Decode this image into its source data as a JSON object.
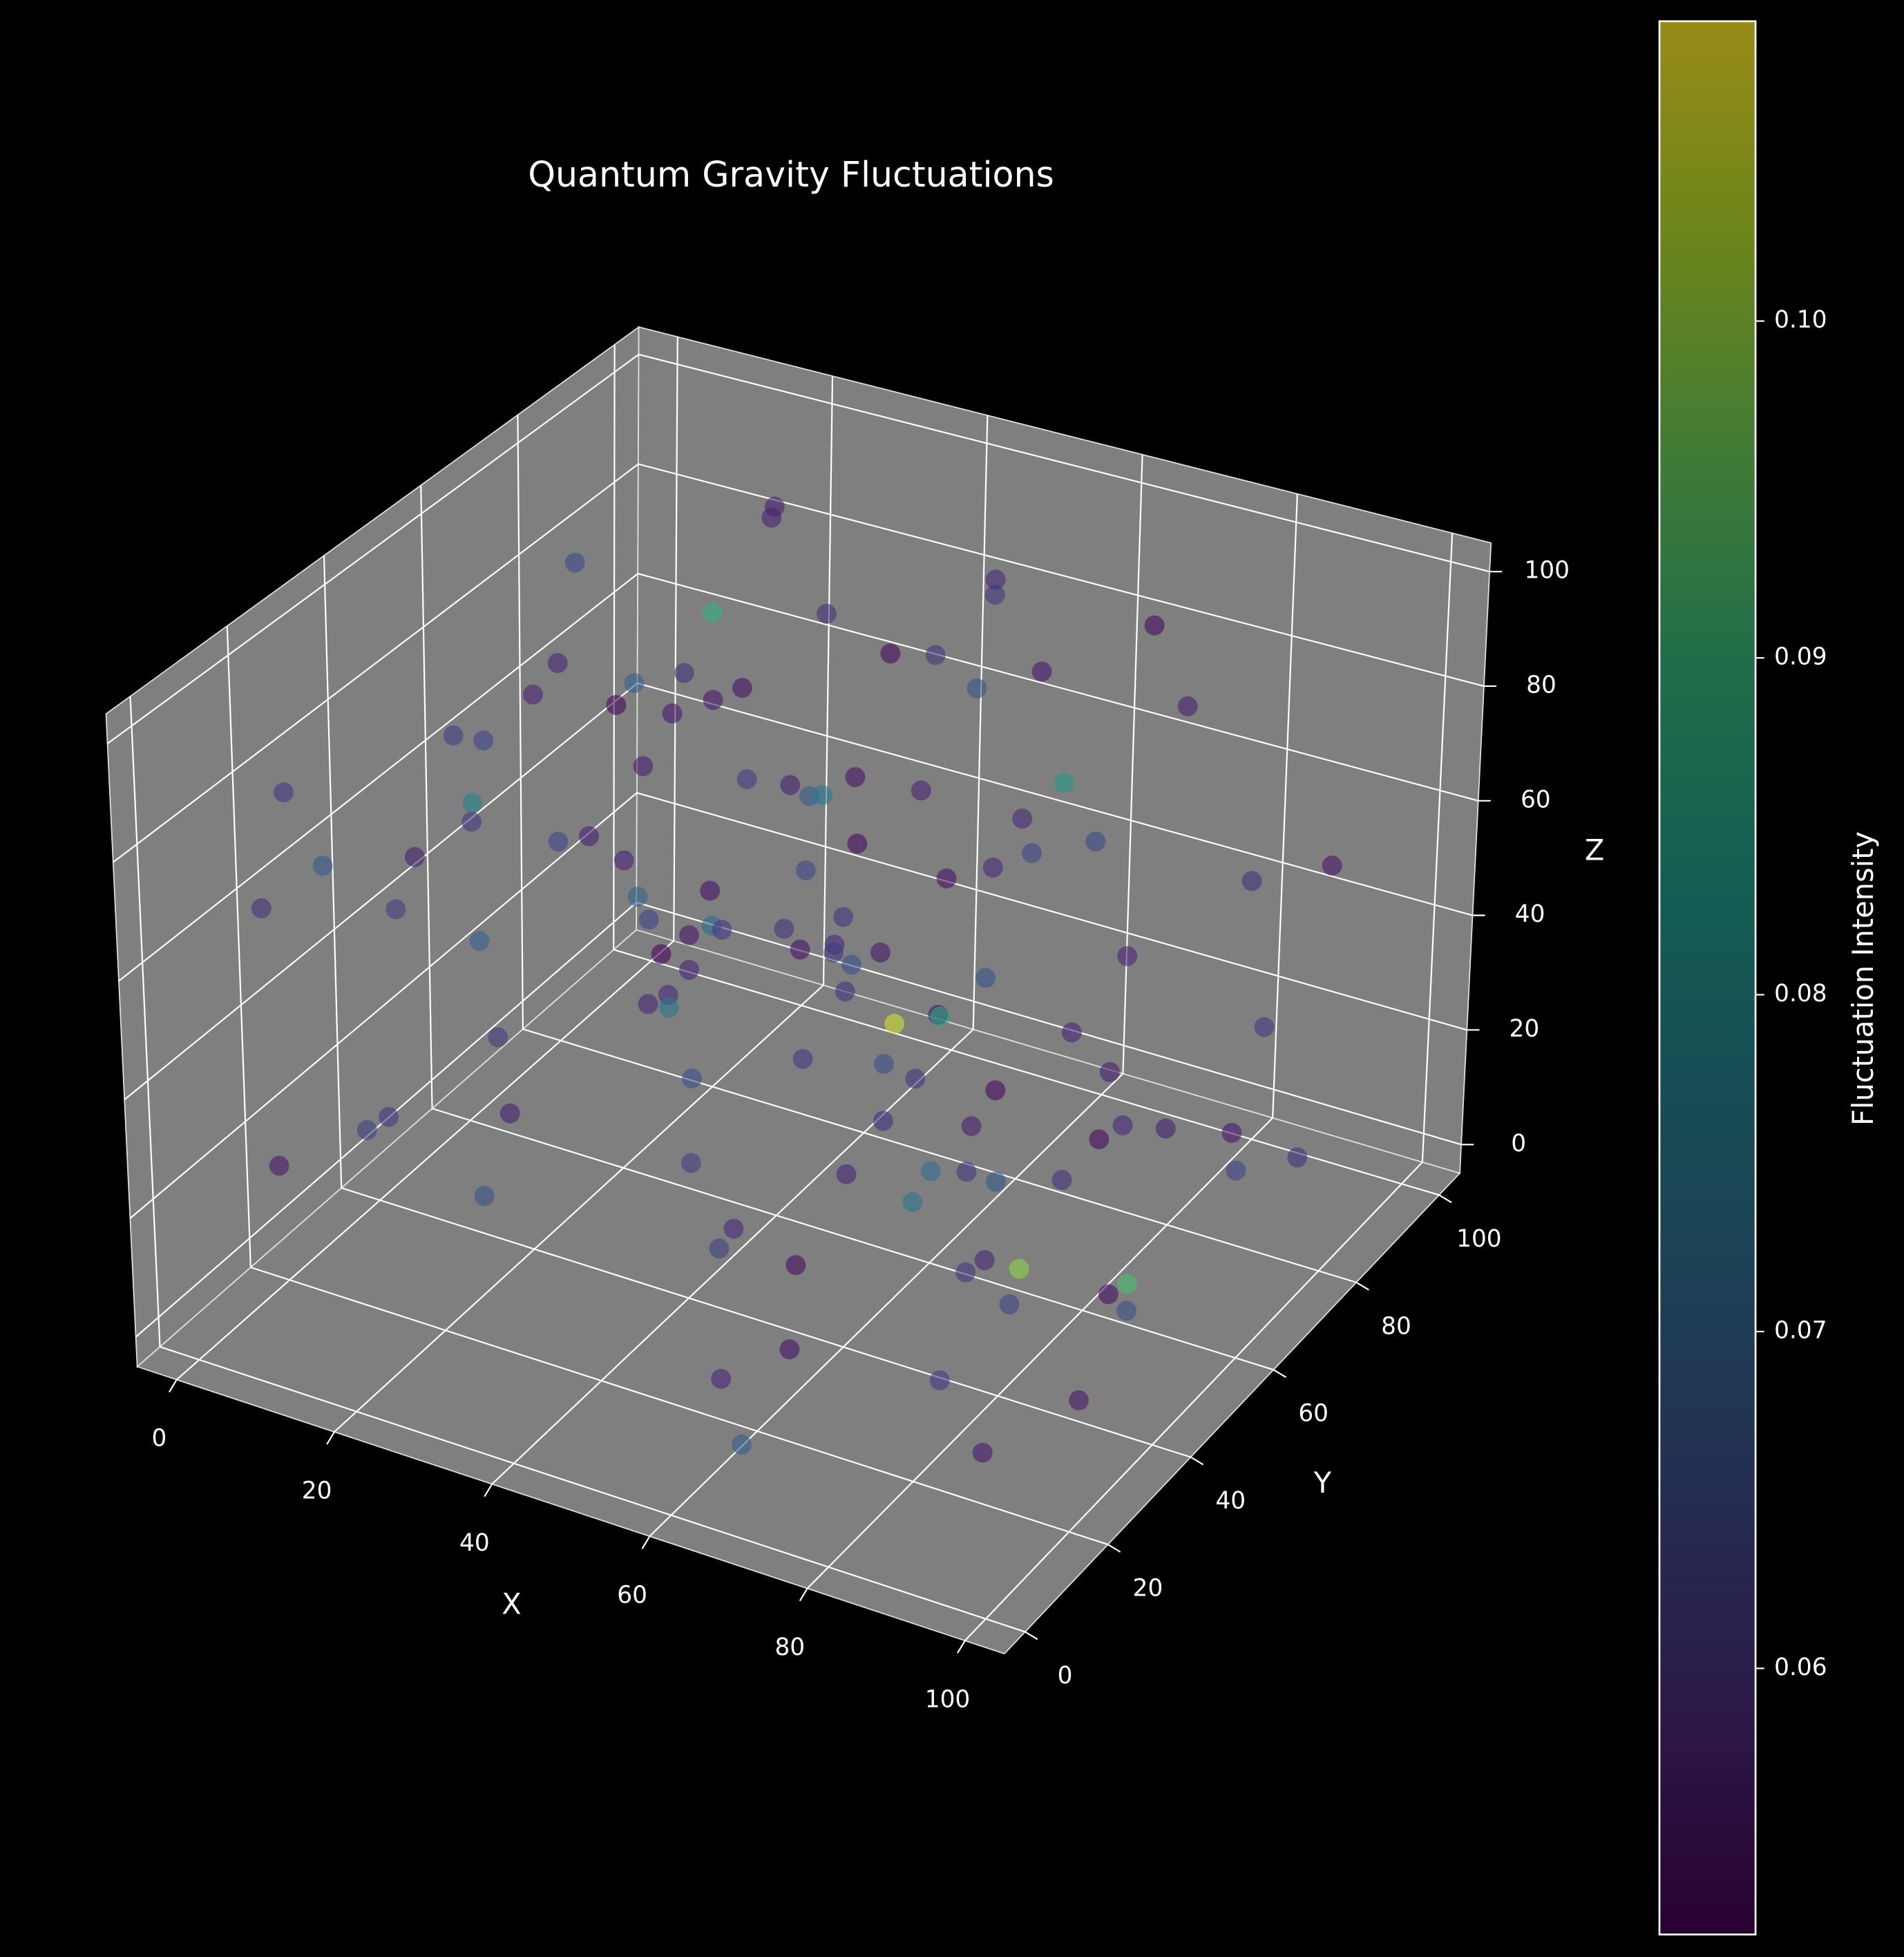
{
  "chart_data": {
    "type": "scatter3d",
    "title": "Quantum Gravity Fluctuations",
    "xlabel": "X",
    "ylabel": "Y",
    "zlabel": "Z",
    "xlim": [
      -5,
      105
    ],
    "ylim": [
      -5,
      105
    ],
    "zlim": [
      -5,
      105
    ],
    "xticks": [
      0,
      20,
      40,
      60,
      80,
      100
    ],
    "yticks": [
      0,
      20,
      40,
      60,
      80,
      100
    ],
    "zticks": [
      0,
      20,
      40,
      60,
      80,
      100
    ],
    "grid": true,
    "colorbar": {
      "label": "Fluctuation Intensity",
      "colormap": "viridis",
      "clim": [
        0.0521,
        0.1089
      ],
      "ticks": [
        0.06,
        0.07,
        0.08,
        0.09,
        {
          "value": 0.1,
          "label": "0.10"
        }
      ]
    },
    "series": [
      {
        "alpha": 0.6,
        "x": [
          12,
          87,
          45,
          63,
          5,
          98,
          34,
          71,
          22,
          56,
          91,
          8,
          77,
          40,
          15,
          66,
          29,
          83,
          51,
          3,
          95,
          38,
          60,
          19,
          73,
          47,
          88,
          26,
          10,
          58,
          81,
          35,
          67,
          2,
          93,
          49,
          24,
          76,
          62,
          14,
          100,
          31,
          54,
          85,
          7,
          69,
          42,
          97,
          18,
          79,
          27,
          61,
          90,
          36,
          4,
          72,
          53,
          84,
          21,
          46,
          11,
          65,
          99,
          30,
          57,
          80,
          16,
          44,
          94,
          25,
          68,
          1,
          86,
          39,
          59,
          13,
          75,
          48,
          92,
          33,
          6,
          70,
          55,
          82,
          20,
          43,
          96,
          28,
          64,
          9,
          78,
          37,
          52,
          89,
          17,
          74,
          41,
          99,
          23,
          61,
          3,
          85,
          50,
          32,
          67,
          14,
          92,
          45,
          71,
          26,
          58,
          8,
          80,
          37,
          95,
          19,
          63,
          48,
          87,
          11
        ],
        "y": [
          55,
          20,
          88,
          7,
          41,
          63,
          95,
          30,
          72,
          14,
          49,
          83,
          2,
          66,
          37,
          91,
          18,
          58,
          76,
          25,
          9,
          44,
          97,
          61,
          33,
          80,
          12,
          70,
          52,
          86,
          27,
          4,
          68,
          39,
          93,
          15,
          59,
          81,
          46,
          22,
          74,
          35,
          100,
          57,
          11,
          89,
          64,
          28,
          50,
          6,
          84,
          42,
          19,
          77,
          31,
          96,
          53,
          1,
          67,
          38,
          90,
          24,
          60,
          13,
          79,
          45,
          99,
          34,
          8,
          71,
          56,
          17,
          87,
          29,
          62,
          40,
          3,
          94,
          21,
          75,
          48,
          10,
          82,
          36,
          65,
          92,
          26,
          58,
          5,
          69,
          43,
          78,
          16,
          54,
          98,
          32,
          85,
          23,
          61,
          47,
          12,
          70,
          37,
          91,
          4,
          57,
          80,
          28,
          65,
          99,
          19,
          51,
          34,
          76,
          43,
          88,
          7,
          62,
          25,
          95
        ],
        "z": [
          78,
          33,
          12,
          90,
          56,
          24,
          67,
          45,
          3,
          81,
          39,
          60,
          95,
          18,
          72,
          8,
          50,
          27,
          86,
          64,
          14,
          99,
          42,
          75,
          30,
          58,
          21,
          88,
          6,
          47,
          92,
          35,
          69,
          11,
          53,
          84,
          26,
          97,
          40,
          63,
          19,
          74,
          48,
          2,
          87,
          31,
          66,
          10,
          58,
          94,
          23,
          80,
          37,
          55,
          15,
          71,
          44,
          96,
          28,
          62,
          5,
          89,
          33,
          70,
          49,
          13,
          82,
          24,
          61,
          38,
          100,
          17,
          52,
          77,
          9,
          66,
          41,
          86,
          29,
          57,
          73,
          20,
          94,
          35,
          62,
          8,
          48,
          79,
          16,
          91,
          44,
          27,
          68,
          3,
          85,
          52,
          11,
          76,
          39,
          58,
          65,
          21,
          90,
          47,
          7,
          83,
          34,
          55,
          98,
          14,
          29,
          71,
          45,
          88,
          18,
          60,
          36,
          4,
          79,
          50
        ],
        "values": [
          0.058,
          0.061,
          0.055,
          0.072,
          0.057,
          0.064,
          0.054,
          0.06,
          0.066,
          0.056,
          0.059,
          0.07,
          0.055,
          0.062,
          0.078,
          0.057,
          0.063,
          0.054,
          0.061,
          0.068,
          0.056,
          0.06,
          0.065,
          0.053,
          0.074,
          0.058,
          0.062,
          0.089,
          0.057,
          0.064,
          0.055,
          0.067,
          0.059,
          0.061,
          0.056,
          0.071,
          0.058,
          0.054,
          0.066,
          0.063,
          0.06,
          0.057,
          0.082,
          0.055,
          0.062,
          0.058,
          0.069,
          0.056,
          0.064,
          0.059,
          0.061,
          0.054,
          0.058,
          0.076,
          0.063,
          0.057,
          0.06,
          0.066,
          0.053,
          0.062,
          0.058,
          0.065,
          0.056,
          0.07,
          0.059,
          0.099,
          0.057,
          0.063,
          0.061,
          0.055,
          0.067,
          0.056,
          0.06,
          0.058,
          0.073,
          0.062,
          0.054,
          0.059,
          0.064,
          0.057,
          0.063,
          0.055,
          0.061,
          0.068,
          0.057,
          0.086,
          0.06,
          0.056,
          0.058,
          0.065,
          0.054,
          0.062,
          0.059,
          0.066,
          0.057,
          0.061,
          0.105,
          0.058,
          0.064,
          0.056,
          0.06,
          0.057,
          0.063,
          0.055,
          0.069,
          0.058,
          0.062,
          0.075,
          0.056,
          0.061,
          0.059,
          0.064,
          0.057,
          0.06,
          0.092,
          0.055,
          0.063,
          0.058,
          0.067,
          0.056
        ]
      }
    ]
  }
}
